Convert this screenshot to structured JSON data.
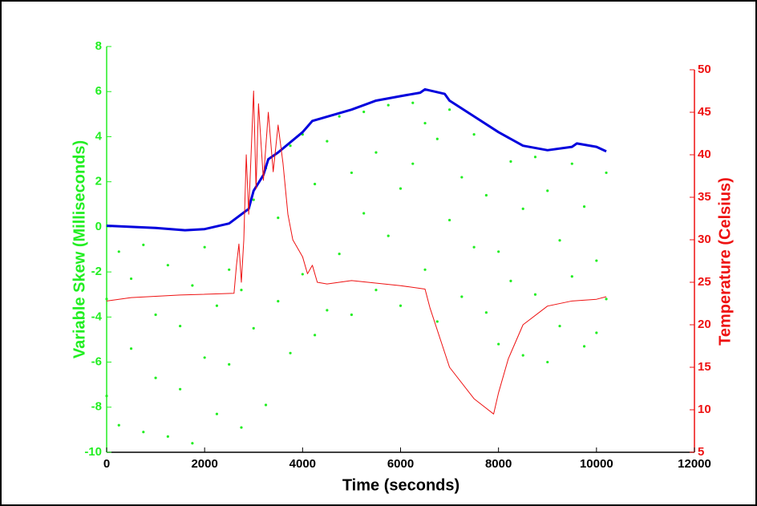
{
  "chart_data": {
    "type": "line",
    "xlabel": "Time (seconds)",
    "ylabel": "Variable Skew (Milliseconds)",
    "y2label": "Temperature (Celsius)",
    "xlim": [
      0,
      12000
    ],
    "xticks": [
      0,
      2000,
      4000,
      6000,
      8000,
      10000,
      12000
    ],
    "ylim": [
      -10,
      8
    ],
    "yticks": [
      -10,
      -8,
      -6,
      -4,
      -2,
      0,
      2,
      4,
      6,
      8
    ],
    "y2lim": [
      5,
      50
    ],
    "y2ticks": [
      5,
      10,
      15,
      20,
      25,
      30,
      35,
      40,
      45,
      50
    ],
    "ycolor": "#22ee22",
    "y2color": "#ee1111",
    "series": [
      {
        "type": "scatter",
        "color": "#22ee22",
        "x": [
          0,
          0,
          250,
          250,
          500,
          500,
          750,
          750,
          1000,
          1000,
          1250,
          1250,
          1500,
          1500,
          1750,
          1750,
          2000,
          2000,
          2250,
          2250,
          2500,
          2500,
          2750,
          2750,
          3000,
          3000,
          3250,
          3250,
          3500,
          3500,
          3750,
          3750,
          4000,
          4000,
          4250,
          4250,
          4500,
          4500,
          4750,
          4750,
          5000,
          5000,
          5250,
          5250,
          5500,
          5500,
          5750,
          5750,
          6000,
          6000,
          6250,
          6250,
          6500,
          6500,
          6750,
          6750,
          7000,
          7000,
          7250,
          7250,
          7500,
          7500,
          7750,
          7750,
          8000,
          8000,
          8250,
          8250,
          8500,
          8500,
          8750,
          8750,
          9000,
          9000,
          9250,
          9250,
          9500,
          9500,
          9750,
          9750,
          10000,
          10000,
          10200,
          10200
        ],
        "values": [
          -3.2,
          -7.5,
          -1.1,
          -8.8,
          -5.4,
          -2.3,
          -9.1,
          -0.8,
          -3.9,
          -6.7,
          -1.7,
          -9.3,
          -7.2,
          -4.4,
          -2.6,
          -9.6,
          -5.8,
          -0.9,
          -8.3,
          -3.5,
          -6.1,
          -1.9,
          -8.9,
          -2.8,
          -4.5,
          1.2,
          -7.9,
          2.6,
          -3.3,
          0.4,
          -5.6,
          3.6,
          -2.1,
          4.1,
          -4.8,
          1.9,
          -3.7,
          3.8,
          -1.2,
          4.9,
          -3.9,
          2.4,
          0.6,
          5.1,
          -2.8,
          3.3,
          -0.4,
          5.4,
          -3.5,
          1.7,
          2.8,
          5.5,
          -1.9,
          4.6,
          -4.2,
          3.9,
          0.3,
          5.2,
          -3.1,
          2.2,
          -0.9,
          4.1,
          -3.8,
          1.4,
          -5.2,
          -1.1,
          -2.4,
          2.9,
          -5.7,
          0.8,
          -3.0,
          3.1,
          -6.0,
          1.6,
          -4.4,
          -0.6,
          -2.2,
          2.8,
          -5.3,
          0.9,
          -1.5,
          -4.7,
          2.4,
          -3.2
        ]
      },
      {
        "type": "line",
        "color": "#0000dd",
        "width": 3,
        "x": [
          0,
          1000,
          1600,
          2000,
          2500,
          2900,
          3000,
          3200,
          3300,
          3500,
          4000,
          4200,
          5000,
          5500,
          6000,
          6400,
          6500,
          6900,
          7000,
          7500,
          8000,
          8500,
          9000,
          9500,
          9600,
          10000,
          10200
        ],
        "values": [
          0.05,
          -0.05,
          -0.15,
          -0.1,
          0.15,
          0.8,
          1.6,
          2.3,
          3.0,
          3.3,
          4.2,
          4.7,
          5.2,
          5.6,
          5.8,
          5.95,
          6.1,
          5.9,
          5.6,
          4.9,
          4.2,
          3.6,
          3.4,
          3.55,
          3.7,
          3.55,
          3.35
        ]
      },
      {
        "type": "line",
        "color": "#ee1111",
        "width": 1,
        "axis": "y2",
        "x": [
          0,
          500,
          1500,
          2600,
          2650,
          2700,
          2750,
          2800,
          2850,
          2900,
          3000,
          3050,
          3100,
          3200,
          3300,
          3400,
          3500,
          3600,
          3700,
          3800,
          4000,
          4100,
          4200,
          4300,
          4500,
          5000,
          6000,
          6500,
          6600,
          7000,
          7500,
          7900,
          8000,
          8200,
          8500,
          9000,
          9500,
          10000,
          10200
        ],
        "values": [
          22.8,
          23.2,
          23.5,
          23.7,
          27,
          29.5,
          25,
          30,
          40,
          33,
          47.5,
          36,
          46,
          37,
          45,
          38,
          43.5,
          39,
          33,
          30,
          28,
          26,
          27,
          25,
          24.8,
          25.2,
          24.6,
          24.2,
          22,
          15,
          11.3,
          9.5,
          12,
          16,
          20,
          22.2,
          22.8,
          23,
          23.3
        ]
      }
    ]
  }
}
